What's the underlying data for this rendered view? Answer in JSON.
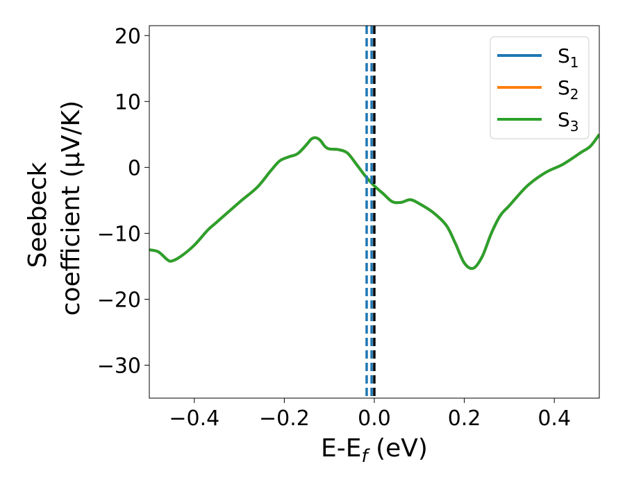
{
  "chart_data": {
    "type": "line",
    "title": "",
    "xlabel": "E-E",
    "xlabel_sub": "f",
    "xlabel_unit": " (eV)",
    "ylabel_line1": "Seebeck",
    "ylabel_line2": "coefficient  (μV/K)",
    "xlim": [
      -0.5,
      0.5
    ],
    "ylim": [
      -35,
      21.5
    ],
    "xticks": [
      -0.4,
      -0.2,
      0.0,
      0.2,
      0.4
    ],
    "xtick_labels": [
      "−0.4",
      "−0.2",
      "0.0",
      "0.2",
      "0.4"
    ],
    "yticks": [
      20,
      10,
      0,
      -10,
      -20,
      -30
    ],
    "ytick_labels": [
      "20",
      "10",
      "0",
      "−10",
      "−20",
      "−30"
    ],
    "grid": false,
    "legend_position": "top-right",
    "series": [
      {
        "name": "S",
        "subscript": "1",
        "color": "#1f77b4",
        "x": [
          -0.5,
          -0.48,
          -0.46,
          -0.45,
          -0.43,
          -0.4,
          -0.37,
          -0.35,
          -0.3,
          -0.26,
          -0.23,
          -0.21,
          -0.19,
          -0.17,
          -0.15,
          -0.14,
          -0.13,
          -0.12,
          -0.11,
          -0.1,
          -0.08,
          -0.06,
          -0.04,
          -0.02,
          0.0,
          0.02,
          0.04,
          0.06,
          0.08,
          0.1,
          0.13,
          0.16,
          0.18,
          0.2,
          0.22,
          0.24,
          0.26,
          0.28,
          0.3,
          0.34,
          0.38,
          0.42,
          0.46,
          0.48,
          0.5
        ],
        "values": [
          -12.5,
          -12.8,
          -14.0,
          -14.2,
          -13.5,
          -11.8,
          -9.5,
          -8.3,
          -5.3,
          -3.0,
          -0.5,
          1.0,
          1.6,
          2.1,
          3.5,
          4.3,
          4.5,
          4.1,
          3.2,
          2.8,
          2.7,
          2.2,
          0.5,
          -1.3,
          -2.8,
          -4.0,
          -5.2,
          -5.3,
          -4.9,
          -5.5,
          -6.8,
          -8.8,
          -11.5,
          -14.5,
          -15.3,
          -13.5,
          -10.0,
          -7.3,
          -5.8,
          -2.8,
          -0.8,
          0.5,
          2.3,
          3.2,
          5.0
        ]
      },
      {
        "name": "S",
        "subscript": "2",
        "color": "#ff7f0e",
        "x": [
          -0.5,
          -0.48,
          -0.46,
          -0.45,
          -0.43,
          -0.4,
          -0.37,
          -0.35,
          -0.3,
          -0.26,
          -0.23,
          -0.21,
          -0.19,
          -0.17,
          -0.15,
          -0.14,
          -0.13,
          -0.12,
          -0.11,
          -0.1,
          -0.08,
          -0.06,
          -0.04,
          -0.02,
          0.0,
          0.02,
          0.04,
          0.06,
          0.08,
          0.1,
          0.13,
          0.16,
          0.18,
          0.2,
          0.22,
          0.24,
          0.26,
          0.28,
          0.3,
          0.34,
          0.38,
          0.42,
          0.46,
          0.48,
          0.5
        ],
        "values": [
          -12.5,
          -12.8,
          -14.0,
          -14.2,
          -13.5,
          -11.8,
          -9.5,
          -8.3,
          -5.3,
          -3.0,
          -0.5,
          1.0,
          1.6,
          2.1,
          3.5,
          4.3,
          4.5,
          4.1,
          3.2,
          2.8,
          2.7,
          2.2,
          0.5,
          -1.3,
          -2.8,
          -4.0,
          -5.2,
          -5.3,
          -4.9,
          -5.5,
          -6.8,
          -8.8,
          -11.5,
          -14.5,
          -15.3,
          -13.5,
          -10.0,
          -7.3,
          -5.8,
          -2.8,
          -0.8,
          0.5,
          2.3,
          3.2,
          5.0
        ]
      },
      {
        "name": "S",
        "subscript": "3",
        "color": "#2ca02c",
        "x": [
          -0.5,
          -0.48,
          -0.46,
          -0.45,
          -0.43,
          -0.4,
          -0.37,
          -0.35,
          -0.3,
          -0.26,
          -0.23,
          -0.21,
          -0.19,
          -0.17,
          -0.15,
          -0.14,
          -0.13,
          -0.12,
          -0.11,
          -0.1,
          -0.08,
          -0.06,
          -0.04,
          -0.02,
          0.0,
          0.02,
          0.04,
          0.06,
          0.08,
          0.1,
          0.13,
          0.16,
          0.18,
          0.2,
          0.22,
          0.24,
          0.26,
          0.28,
          0.3,
          0.34,
          0.38,
          0.42,
          0.46,
          0.48,
          0.5
        ],
        "values": [
          -12.5,
          -12.8,
          -14.0,
          -14.2,
          -13.5,
          -11.8,
          -9.5,
          -8.3,
          -5.3,
          -3.0,
          -0.5,
          1.0,
          1.6,
          2.1,
          3.5,
          4.3,
          4.5,
          4.1,
          3.2,
          2.8,
          2.7,
          2.2,
          0.5,
          -1.3,
          -2.8,
          -4.0,
          -5.2,
          -5.3,
          -4.9,
          -5.5,
          -6.8,
          -8.8,
          -11.5,
          -14.5,
          -15.3,
          -13.5,
          -10.0,
          -7.3,
          -5.8,
          -2.8,
          -0.8,
          0.5,
          2.3,
          3.2,
          5.0
        ]
      }
    ],
    "vertical_lines": [
      {
        "x": -0.017,
        "color": "#1f77b4",
        "style": "dashed"
      },
      {
        "x": -0.006,
        "color": "#1f77b4",
        "style": "dashed"
      },
      {
        "x": 0.0,
        "color": "#000000",
        "style": "dashed"
      }
    ]
  }
}
